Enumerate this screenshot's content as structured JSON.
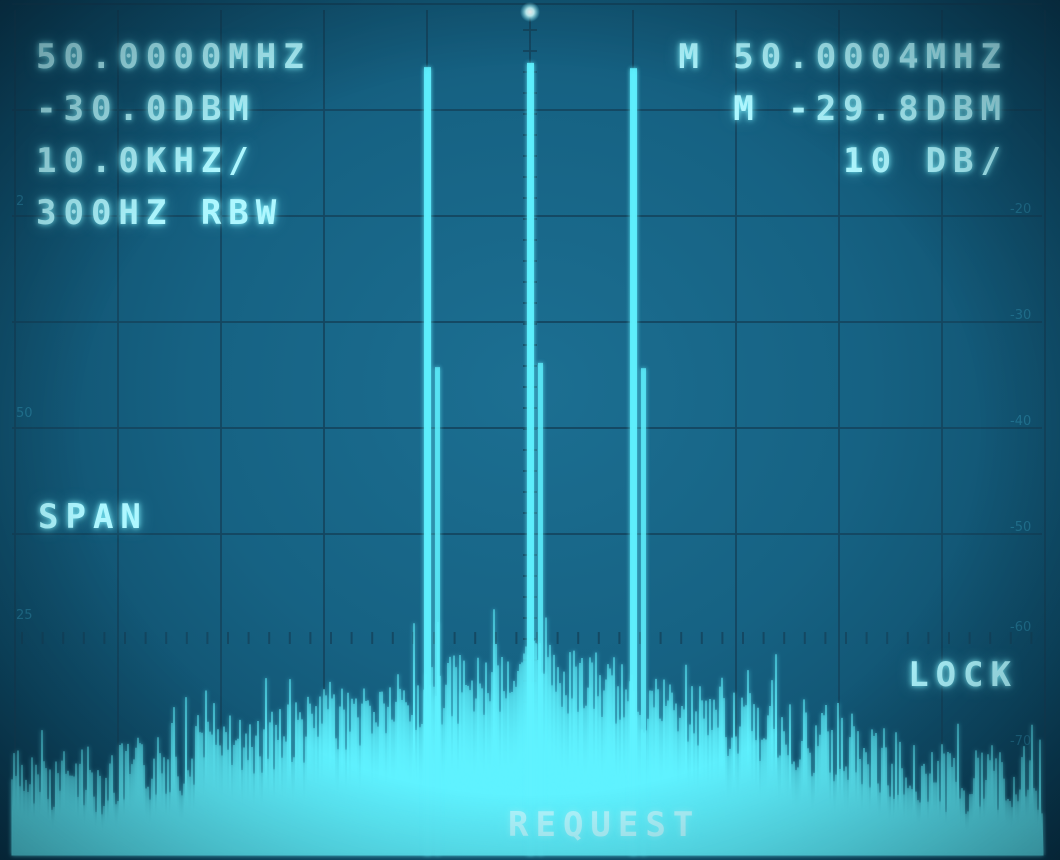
{
  "readouts": {
    "center_freq": "50.0000MHZ",
    "ref_level": "-30.0DBM",
    "span_per_div": "10.0KHZ/",
    "rbw": "300HZ RBW",
    "marker_freq": "M 50.0004MHZ",
    "marker_level": "M -29.8DBM",
    "scale": "10 DB/",
    "span_label": "SPAN",
    "lock_label": "LOCK",
    "request_label": "REQUEST"
  },
  "graticule": {
    "right_scale": [
      "-20",
      "-30",
      "-40",
      "-50",
      "-60",
      "-70"
    ],
    "left_scale": [
      "2",
      "50",
      "25"
    ]
  },
  "trace": {
    "color": "#5ff2ff",
    "spectral_lines_dbm": [
      {
        "offset_div": -1,
        "level": -30.2
      },
      {
        "offset_div": 0,
        "level": -29.8
      },
      {
        "offset_div": 1,
        "level": -30.3
      }
    ],
    "noise_floor_dbm": -72
  }
}
